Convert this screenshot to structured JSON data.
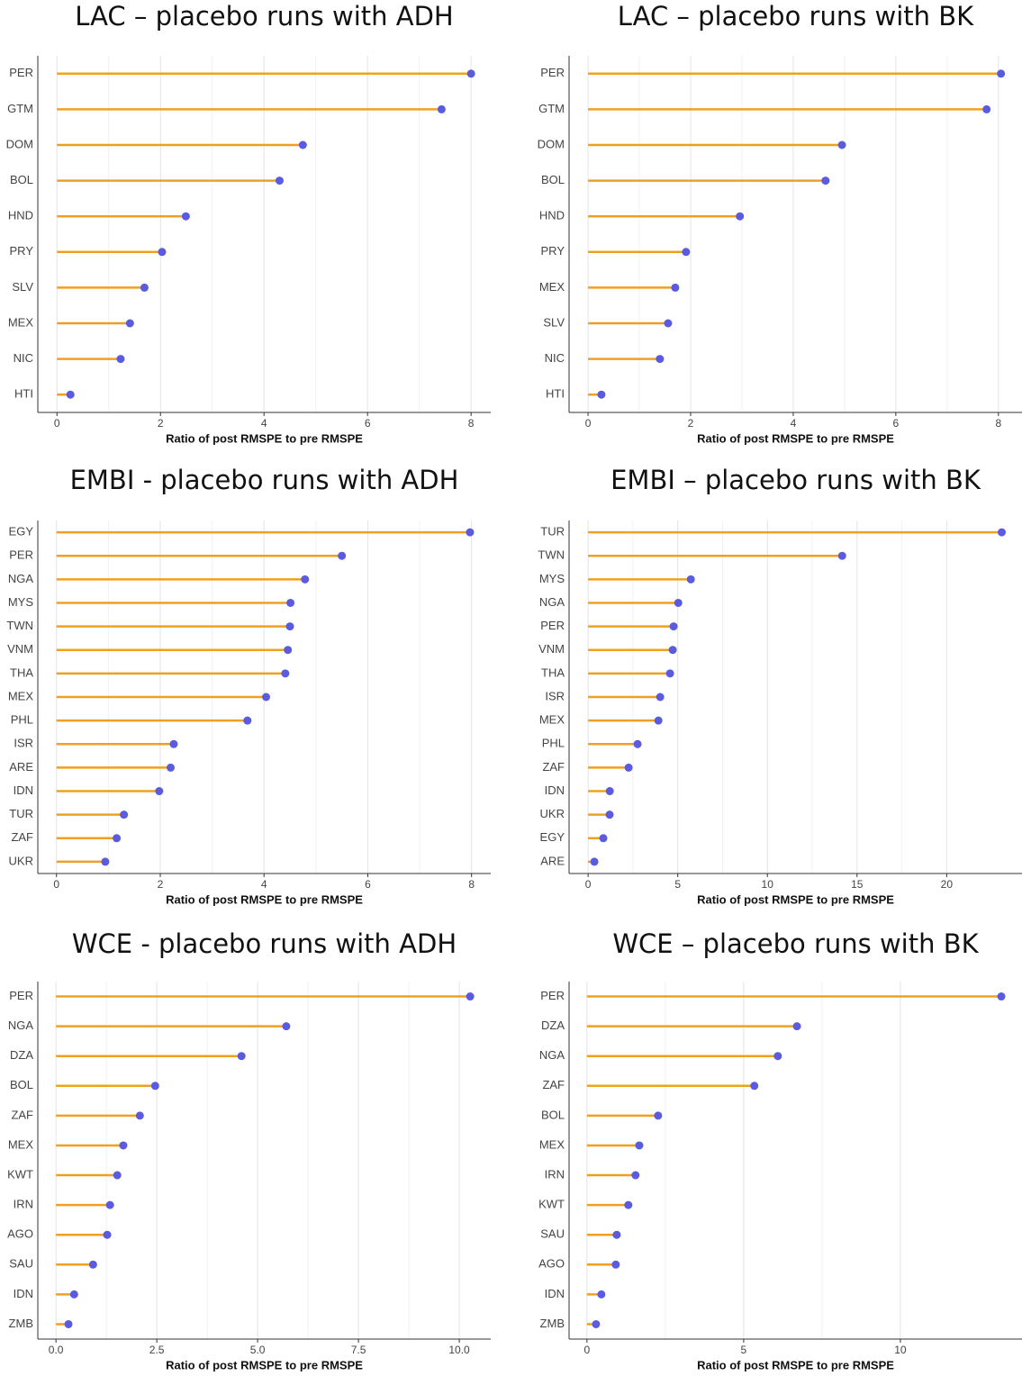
{
  "chart_data": [
    {
      "type": "lollipop",
      "title": "LAC – placebo runs with ADH",
      "xlabel": "Ratio of post RMSPE to pre RMSPE",
      "categories": [
        "PER",
        "GTM",
        "DOM",
        "BOL",
        "HND",
        "PRY",
        "SLV",
        "MEX",
        "NIC",
        "HTI"
      ],
      "values": [
        8.0,
        7.43,
        4.75,
        4.3,
        2.49,
        2.03,
        1.69,
        1.41,
        1.23,
        0.26
      ],
      "color": "#f0a020",
      "marker_color": "#5b5be0",
      "xlim": [
        -0.37,
        8.38
      ],
      "xticks": [
        0,
        2,
        4,
        6,
        8
      ],
      "grid": true
    },
    {
      "type": "lollipop",
      "title": "LAC – placebo runs with BK",
      "xlabel": "Ratio of post RMSPE to pre RMSPE",
      "categories": [
        "PER",
        "GTM",
        "DOM",
        "BOL",
        "HND",
        "PRY",
        "MEX",
        "SLV",
        "NIC",
        "HTI"
      ],
      "values": [
        8.05,
        7.77,
        4.95,
        4.63,
        2.96,
        1.91,
        1.7,
        1.56,
        1.4,
        0.26
      ],
      "color": "#f0a020",
      "marker_color": "#5b5be0",
      "xlim": [
        -0.37,
        8.46
      ],
      "xticks": [
        0,
        2,
        4,
        6,
        8
      ],
      "grid": true
    },
    {
      "type": "lollipop",
      "title": "EMBI - placebo runs with ADH",
      "xlabel": "Ratio of post RMSPE to pre RMSPE",
      "categories": [
        "EGY",
        "PER",
        "NGA",
        "MYS",
        "TWN",
        "VNM",
        "THA",
        "MEX",
        "PHL",
        "ISR",
        "ARE",
        "IDN",
        "TUR",
        "ZAF",
        "UKR"
      ],
      "values": [
        7.97,
        5.5,
        4.79,
        4.51,
        4.5,
        4.46,
        4.41,
        4.04,
        3.68,
        2.26,
        2.2,
        1.98,
        1.3,
        1.16,
        0.94
      ],
      "color": "#f0a020",
      "marker_color": "#5b5be0",
      "xlim": [
        -0.36,
        8.37
      ],
      "xticks": [
        0,
        2,
        4,
        6,
        8
      ],
      "grid": true
    },
    {
      "type": "lollipop",
      "title": "EMBI – placebo runs with BK",
      "xlabel": "Ratio of post RMSPE to pre RMSPE",
      "categories": [
        "TUR",
        "TWN",
        "MYS",
        "NGA",
        "PER",
        "VNM",
        "THA",
        "ISR",
        "MEX",
        "PHL",
        "ZAF",
        "IDN",
        "UKR",
        "EGY",
        "ARE"
      ],
      "values": [
        23.07,
        14.17,
        5.73,
        5.03,
        4.77,
        4.72,
        4.57,
        4.02,
        3.92,
        2.76,
        2.26,
        1.21,
        1.2,
        0.85,
        0.35
      ],
      "color": "#f0a020",
      "marker_color": "#5b5be0",
      "xlim": [
        -1.06,
        24.2
      ],
      "xticks": [
        0,
        5,
        10,
        15,
        20
      ],
      "grid": true
    },
    {
      "type": "lollipop",
      "title": "WCE - placebo runs with ADH",
      "xlabel": "Ratio of post RMSPE to pre RMSPE",
      "categories": [
        "PER",
        "NGA",
        "DZA",
        "BOL",
        "ZAF",
        "MEX",
        "KWT",
        "IRN",
        "AGO",
        "SAU",
        "IDN",
        "ZMB"
      ],
      "values": [
        10.27,
        5.71,
        4.6,
        2.46,
        2.08,
        1.67,
        1.52,
        1.34,
        1.27,
        0.92,
        0.45,
        0.31
      ],
      "color": "#f0a020",
      "marker_color": "#5b5be0",
      "xlim": [
        -0.45,
        10.78
      ],
      "xticks": [
        {
          "value": 0,
          "label": "0.0"
        },
        2.5,
        {
          "value": 5,
          "label": "5.0"
        },
        7.5,
        {
          "value": 10,
          "label": "10.0"
        }
      ],
      "grid": true
    },
    {
      "type": "lollipop",
      "title": "WCE – placebo runs with BK",
      "xlabel": "Ratio of post RMSPE to pre RMSPE",
      "categories": [
        "PER",
        "DZA",
        "NGA",
        "ZAF",
        "BOL",
        "MEX",
        "IRN",
        "KWT",
        "SAU",
        "AGO",
        "IDN",
        "ZMB"
      ],
      "values": [
        13.22,
        6.7,
        6.09,
        5.34,
        2.27,
        1.67,
        1.55,
        1.32,
        0.95,
        0.92,
        0.46,
        0.29
      ],
      "color": "#f0a020",
      "marker_color": "#5b5be0",
      "xlim": [
        -0.57,
        13.88
      ],
      "xticks": [
        0,
        5,
        10
      ],
      "grid": true
    }
  ]
}
